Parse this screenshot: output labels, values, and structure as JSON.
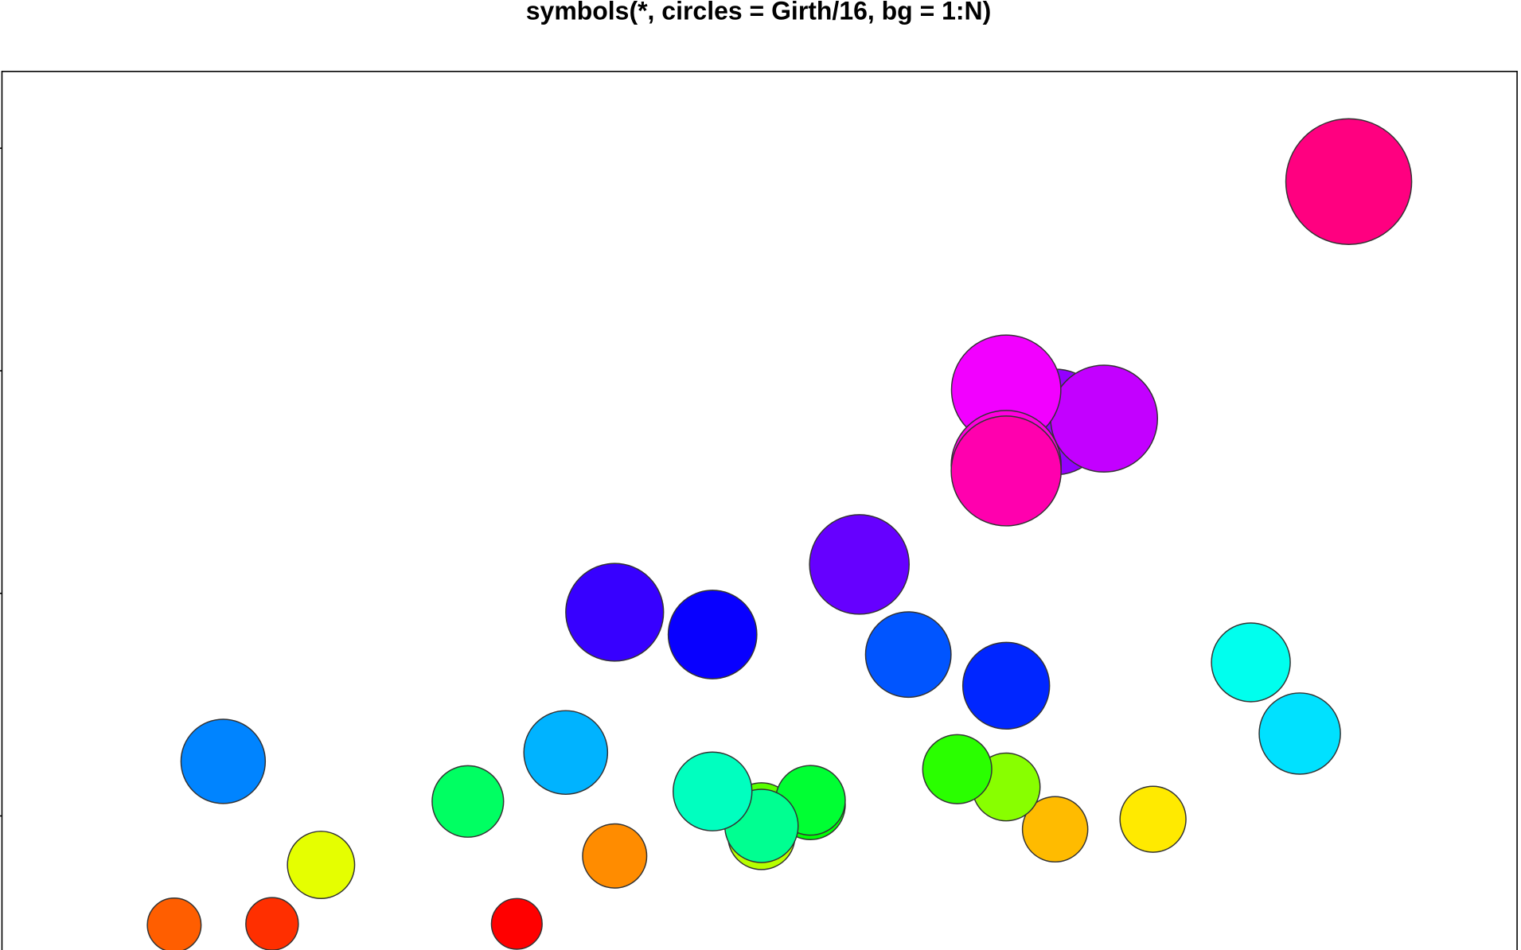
{
  "chart_data": {
    "type": "scatter",
    "title": "symbols(*, circles = Girth/16, bg = 1:N)",
    "x": [
      70,
      65,
      63,
      72,
      81,
      83,
      66,
      75,
      80,
      75,
      79,
      76,
      76,
      69,
      75,
      74,
      85,
      86,
      71,
      64,
      78,
      80,
      74,
      72,
      77,
      81,
      82,
      80,
      80,
      80,
      87
    ],
    "values": [
      10.3,
      10.3,
      10.2,
      16.4,
      18.8,
      19.7,
      15.6,
      18.2,
      22.6,
      19.9,
      24.2,
      21.0,
      21.4,
      21.3,
      19.1,
      22.2,
      33.8,
      27.4,
      25.7,
      24.9,
      34.5,
      31.7,
      36.3,
      38.3,
      42.6,
      55.4,
      55.7,
      58.3,
      51.5,
      51.0,
      77.0
    ],
    "sizes": [
      8.3,
      8.6,
      8.8,
      10.5,
      10.7,
      10.8,
      11.0,
      11.0,
      11.1,
      11.2,
      11.3,
      11.4,
      11.4,
      11.7,
      12.0,
      12.9,
      12.9,
      13.3,
      13.7,
      13.8,
      14.0,
      14.2,
      14.5,
      16.0,
      16.3,
      17.3,
      17.5,
      17.9,
      18.0,
      18.0,
      20.6
    ],
    "colors": [
      "#ff0000",
      "#ff2f00",
      "#ff5e00",
      "#ff8c00",
      "#ffbb00",
      "#ffea00",
      "#e5ff00",
      "#b7ff00",
      "#88ff00",
      "#59ff00",
      "#2aff00",
      "#00ff04",
      "#00ff33",
      "#00ff62",
      "#00ff91",
      "#00ffbf",
      "#00ffee",
      "#00e1ff",
      "#00b3ff",
      "#0084ff",
      "#0055ff",
      "#0026ff",
      "#0800ff",
      "#3700ff",
      "#6600ff",
      "#9400ff",
      "#c300ff",
      "#f200ff",
      "#ff00dd",
      "#ff00ae",
      "#ff0080"
    ],
    "xlim": [
      59.48,
      90.44
    ],
    "ylim": [
      7.16,
      86.9
    ],
    "yticks": [
      20,
      40,
      60,
      80
    ]
  }
}
